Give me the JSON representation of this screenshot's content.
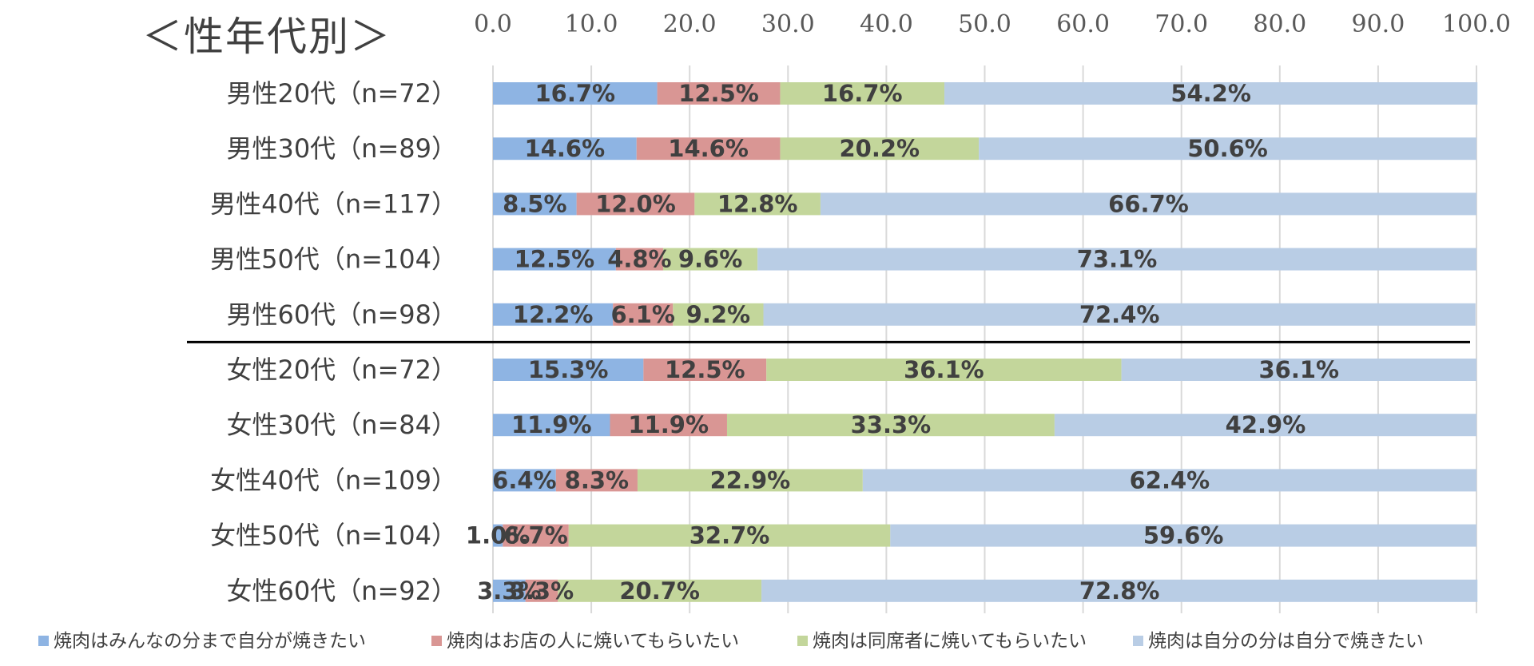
{
  "chart_data": {
    "type": "bar",
    "orientation": "horizontal",
    "stacked": true,
    "title": "＜性年代別＞",
    "categories": [
      "男性20代（n=72）",
      "男性30代（n=89）",
      "男性40代（n=117）",
      "男性50代（n=104）",
      "男性60代（n=98）",
      "女性20代（n=72）",
      "女性30代（n=84）",
      "女性40代（n=109）",
      "女性50代（n=104）",
      "女性60代（n=92）"
    ],
    "series": [
      {
        "name": "焼肉はみんなの分まで自分が焼きたい",
        "color": "#8EB4E3",
        "values": [
          16.7,
          14.6,
          8.5,
          12.5,
          12.2,
          15.3,
          11.9,
          6.4,
          1.0,
          3.3
        ]
      },
      {
        "name": "焼肉はお店の人に焼いてもらいたい",
        "color": "#D99694",
        "values": [
          12.5,
          14.6,
          12.0,
          4.8,
          6.1,
          12.5,
          11.9,
          8.3,
          6.7,
          3.3
        ]
      },
      {
        "name": "焼肉は同席者に焼いてもらいたい",
        "color": "#C3D69B",
        "values": [
          16.7,
          20.2,
          12.8,
          9.6,
          9.2,
          36.1,
          33.3,
          22.9,
          32.7,
          20.7
        ]
      },
      {
        "name": "焼肉は自分の分は自分で焼きたい",
        "color": "#B9CDE5",
        "values": [
          54.2,
          50.6,
          66.7,
          73.1,
          72.4,
          36.1,
          42.9,
          62.4,
          59.6,
          72.8
        ]
      }
    ],
    "data_labels": [
      [
        "16.7%",
        "12.5%",
        "16.7%",
        "54.2%"
      ],
      [
        "14.6%",
        "14.6%",
        "20.2%",
        "50.6%"
      ],
      [
        "8.5%",
        "12.0%",
        "12.8%",
        "66.7%"
      ],
      [
        "12.5%",
        "4.8%",
        "9.6%",
        "73.1%"
      ],
      [
        "12.2%",
        "6.1%",
        "9.2%",
        "72.4%"
      ],
      [
        "15.3%",
        "12.5%",
        "36.1%",
        "36.1%"
      ],
      [
        "11.9%",
        "11.9%",
        "33.3%",
        "42.9%"
      ],
      [
        "6.4%",
        "8.3%",
        "22.9%",
        "62.4%"
      ],
      [
        "1.0%",
        "6.7%",
        "32.7%",
        "59.6%"
      ],
      [
        "3.3%",
        "3.3%",
        "20.7%",
        "72.8%"
      ]
    ],
    "xaxis": {
      "range": [
        0,
        100
      ],
      "position": "top",
      "ticks": [
        0,
        10,
        20,
        30,
        40,
        50,
        60,
        70,
        80,
        90,
        100
      ],
      "tick_labels": [
        "0.0",
        "10.0",
        "20.0",
        "30.0",
        "40.0",
        "50.0",
        "60.0",
        "70.0",
        "80.0",
        "90.0",
        "100.0"
      ]
    },
    "grid": true,
    "separator_after_category": 5,
    "legend_position": "bottom"
  }
}
